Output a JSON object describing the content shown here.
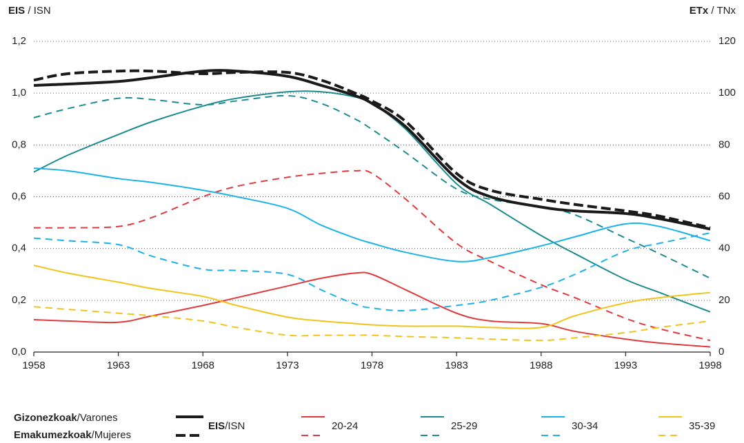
{
  "chart_data": {
    "type": "line",
    "y_label": [
      "EIS",
      " / ISN"
    ],
    "y2_label": [
      "ETx",
      " / TNx"
    ],
    "xlim": [
      1958,
      1998
    ],
    "xticks": [
      1958,
      1963,
      1968,
      1973,
      1978,
      1983,
      1988,
      1993,
      1998
    ],
    "ylim": [
      0,
      1.2
    ],
    "yticks": [
      {
        "value": 0,
        "label": "0,0"
      },
      {
        "value": 0.2,
        "label": "0,2"
      },
      {
        "value": 0.4,
        "label": "0,4"
      },
      {
        "value": 0.6,
        "label": "0,6"
      },
      {
        "value": 0.8,
        "label": "0,8"
      },
      {
        "value": 1.0,
        "label": "1,0"
      },
      {
        "value": 1.2,
        "label": "1,2"
      }
    ],
    "y2lim": [
      0,
      120
    ],
    "y2ticks": [
      0,
      20,
      40,
      60,
      80,
      100,
      120
    ],
    "grid": true,
    "legend": {
      "men": [
        "Gizonezkoak",
        "/Varones"
      ],
      "women": [
        "Emakumezkoak",
        "/Mujeres"
      ]
    },
    "groups": [
      {
        "name": [
          "EIS",
          "/ISN"
        ],
        "color": "#1a1a1a"
      },
      {
        "name": "20-24",
        "color": "#e0393b"
      },
      {
        "name": "25-29",
        "color": "#1a8a8f"
      },
      {
        "name": "30-34",
        "color": "#1ab2e8"
      },
      {
        "name": "35-39",
        "color": "#f2c318"
      }
    ],
    "x": [
      1958,
      1960,
      1963,
      1965,
      1968,
      1970,
      1973,
      1975,
      1977,
      1978,
      1980,
      1983,
      1985,
      1988,
      1990,
      1993,
      1995,
      1998
    ],
    "series": [
      {
        "group": 1,
        "dashed": false,
        "axis": "y2",
        "values": [
          12.5,
          12,
          11.5,
          14,
          18,
          21,
          25.5,
          28.5,
          30.5,
          30,
          24,
          15,
          12,
          11,
          8,
          5,
          3.5,
          2
        ]
      },
      {
        "group": 1,
        "dashed": true,
        "axis": "y2",
        "values": [
          48,
          48,
          48.5,
          52,
          60,
          64,
          67.5,
          69,
          70,
          69,
          59,
          42,
          35,
          26,
          21,
          13,
          9,
          4.5
        ]
      },
      {
        "group": 2,
        "dashed": false,
        "axis": "y2",
        "values": [
          69.5,
          76,
          84,
          89,
          95,
          98,
          100.5,
          100.5,
          98.5,
          96,
          86,
          65,
          57,
          45,
          38,
          28,
          23,
          15.5
        ]
      },
      {
        "group": 2,
        "dashed": true,
        "axis": "y2",
        "values": [
          90.5,
          94,
          98,
          97.5,
          95.5,
          97,
          99,
          96,
          90,
          86,
          77,
          63,
          59,
          56,
          53,
          44,
          38,
          28.5
        ]
      },
      {
        "group": 3,
        "dashed": false,
        "axis": "y2",
        "values": [
          71,
          70,
          67,
          65.5,
          62.5,
          60,
          55.5,
          49,
          44,
          42,
          38.5,
          35,
          36.5,
          41,
          44.5,
          49.5,
          48.5,
          43
        ]
      },
      {
        "group": 3,
        "dashed": true,
        "axis": "y2",
        "values": [
          44,
          43,
          41.5,
          37,
          32,
          31.5,
          30,
          24,
          18.5,
          17,
          16,
          18,
          20,
          25,
          30,
          39,
          42,
          46
        ]
      },
      {
        "group": 4,
        "dashed": false,
        "axis": "y2",
        "values": [
          33.5,
          30.5,
          27,
          24.5,
          21.5,
          18,
          13.5,
          12,
          11,
          10.5,
          10,
          10,
          9.5,
          9.5,
          14,
          19,
          21,
          23
        ]
      },
      {
        "group": 4,
        "dashed": true,
        "axis": "y2",
        "values": [
          17.5,
          16.5,
          15,
          14,
          12,
          9.5,
          6.5,
          6.5,
          6.5,
          6.5,
          6,
          5.5,
          5,
          4.5,
          5.5,
          7.5,
          9.5,
          12
        ]
      },
      {
        "group": 0,
        "dashed": false,
        "values": [
          1.03,
          1.035,
          1.045,
          1.06,
          1.085,
          1.085,
          1.065,
          1.03,
          0.99,
          0.96,
          0.87,
          0.67,
          0.6,
          0.56,
          0.545,
          0.535,
          0.515,
          0.475
        ]
      },
      {
        "group": 0,
        "dashed": true,
        "values": [
          1.05,
          1.075,
          1.085,
          1.085,
          1.075,
          1.08,
          1.08,
          1.05,
          1.0,
          0.97,
          0.89,
          0.69,
          0.625,
          0.59,
          0.57,
          0.545,
          0.525,
          0.48
        ]
      }
    ]
  }
}
